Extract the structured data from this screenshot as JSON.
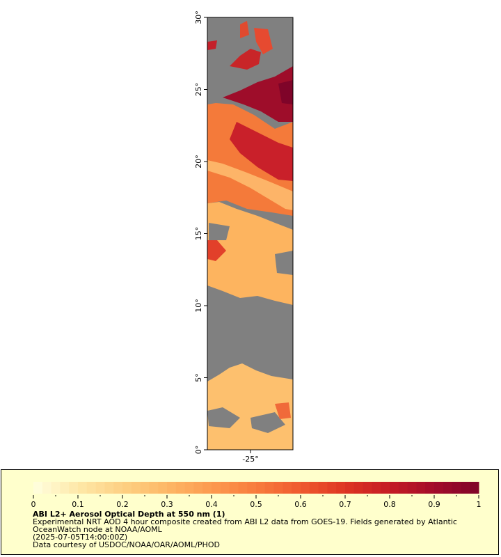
{
  "title": "ABI L2+ Aerosol Optical Depth at 550 nm (1)",
  "description": "Experimental NRT AOD 4 hour composite created from ABI L2 data from GOES-19. Fields generated by Atlantic OceanWatch node at NOAA/AOML",
  "timestamp": "(2025-07-05T14:00:00Z)",
  "credit": "Data courtesy of USDOC/NOAA/OAR/AOML/PHOD",
  "axes": {
    "lat_ticks": [
      "0°",
      "5°",
      "10°",
      "15°",
      "20°",
      "25°",
      "30°"
    ],
    "lon_ticks": [
      "-25°"
    ]
  },
  "colorbar": {
    "labels": [
      "0",
      "0.1",
      "0.2",
      "0.3",
      "0.4",
      "0.5",
      "0.6",
      "0.7",
      "0.8",
      "0.9",
      "1"
    ],
    "colors": [
      "#ffffe0",
      "#fee8a8",
      "#fdd083",
      "#fdb766",
      "#fc9a4f",
      "#f87c3d",
      "#ef5a2f",
      "#de3523",
      "#c41b24",
      "#a30c2a",
      "#7f0429"
    ],
    "nodata_color": "#808080"
  },
  "map": {
    "aod_bands": [
      {
        "lat": [
          0,
          4.5
        ],
        "aod": 0.3
      },
      {
        "lat": [
          11,
          14
        ],
        "aod": 0.4
      },
      {
        "lat": [
          14,
          18
        ],
        "aod": 0.35
      },
      {
        "lat": [
          18,
          20
        ],
        "aod": 0.5
      },
      {
        "lat": [
          20,
          23
        ],
        "aod": 0.75
      },
      {
        "lat": [
          23,
          30
        ],
        "aod": 0.85
      }
    ]
  }
}
